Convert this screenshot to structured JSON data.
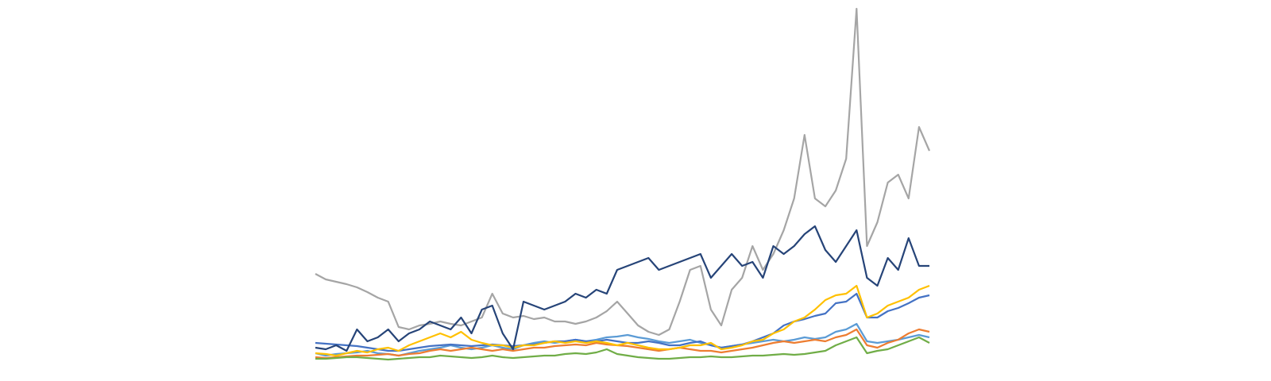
{
  "chart_data": {
    "type": "line",
    "categories": [
      null,
      null,
      null,
      null,
      null,
      null,
      null,
      null,
      null,
      null,
      null,
      null,
      null,
      null,
      null,
      null,
      null,
      null,
      null,
      null,
      null,
      null,
      null,
      null,
      null,
      null,
      null,
      null,
      null,
      null,
      null,
      null,
      null,
      null,
      null,
      null,
      null,
      null,
      null,
      null,
      null,
      null,
      null,
      null,
      null,
      null,
      null,
      null,
      null,
      null,
      null,
      null,
      null,
      null,
      null,
      null,
      null,
      null,
      null,
      null
    ],
    "ylim": [
      0,
      450
    ],
    "series": [
      {
        "color": "#a5a5a5",
        "values": [
          115,
          108,
          105,
          102,
          98,
          92,
          85,
          80,
          48,
          45,
          50,
          52,
          55,
          52,
          50,
          55,
          60,
          90,
          65,
          60,
          62,
          58,
          60,
          55,
          55,
          52,
          55,
          60,
          68,
          80,
          65,
          50,
          42,
          38,
          45,
          80,
          120,
          125,
          70,
          50,
          95,
          110,
          150,
          120,
          140,
          170,
          210,
          290,
          210,
          200,
          220,
          260,
          449,
          150,
          180,
          230,
          240,
          210,
          300,
          270
        ]
      },
      {
        "color": "#5b9bd5",
        "values": [
          15,
          12,
          14,
          15,
          16,
          18,
          15,
          14,
          12,
          15,
          18,
          20,
          22,
          25,
          22,
          20,
          22,
          25,
          22,
          20,
          25,
          28,
          30,
          28,
          30,
          32,
          30,
          32,
          35,
          36,
          38,
          35,
          33,
          30,
          28,
          30,
          32,
          28,
          25,
          22,
          24,
          26,
          28,
          30,
          32,
          30,
          32,
          35,
          33,
          35,
          42,
          45,
          52,
          30,
          28,
          30,
          32,
          35,
          38,
          35
        ]
      },
      {
        "color": "#ed7d31",
        "values": [
          10,
          9,
          10,
          11,
          12,
          12,
          13,
          14,
          12,
          14,
          15,
          18,
          20,
          18,
          20,
          22,
          20,
          18,
          20,
          18,
          20,
          22,
          22,
          24,
          25,
          26,
          25,
          28,
          26,
          25,
          24,
          22,
          20,
          18,
          20,
          22,
          20,
          18,
          18,
          16,
          18,
          20,
          22,
          25,
          28,
          30,
          28,
          30,
          32,
          30,
          35,
          38,
          45,
          25,
          22,
          28,
          32,
          40,
          45,
          42
        ]
      },
      {
        "color": "#70ad47",
        "values": [
          8,
          8,
          9,
          10,
          10,
          9,
          8,
          7,
          8,
          9,
          10,
          10,
          12,
          11,
          10,
          9,
          10,
          12,
          10,
          9,
          10,
          11,
          12,
          12,
          14,
          15,
          14,
          16,
          20,
          14,
          12,
          10,
          9,
          8,
          8,
          9,
          10,
          10,
          11,
          10,
          10,
          11,
          12,
          12,
          13,
          14,
          13,
          14,
          16,
          18,
          25,
          30,
          35,
          15,
          18,
          20,
          25,
          30,
          35,
          28
        ]
      },
      {
        "color": "#4472c4",
        "values": [
          28,
          27,
          26,
          25,
          24,
          22,
          20,
          18,
          18,
          20,
          22,
          24,
          25,
          26,
          25,
          24,
          25,
          26,
          25,
          24,
          25,
          26,
          28,
          30,
          30,
          32,
          30,
          30,
          32,
          30,
          28,
          28,
          30,
          28,
          25,
          25,
          28,
          30,
          25,
          22,
          24,
          26,
          30,
          35,
          40,
          50,
          55,
          58,
          62,
          65,
          78,
          80,
          90,
          60,
          60,
          68,
          72,
          78,
          85,
          88
        ]
      },
      {
        "color": "#ffc000",
        "values": [
          15,
          14,
          12,
          15,
          18,
          16,
          20,
          22,
          18,
          25,
          30,
          35,
          40,
          35,
          42,
          32,
          28,
          25,
          25,
          22,
          25,
          25,
          28,
          30,
          28,
          30,
          28,
          30,
          28,
          25,
          28,
          25,
          22,
          20,
          20,
          22,
          25,
          25,
          28,
          20,
          22,
          25,
          30,
          32,
          40,
          45,
          55,
          60,
          70,
          82,
          88,
          90,
          100,
          60,
          65,
          75,
          80,
          85,
          95,
          100
        ]
      },
      {
        "color": "#264478",
        "values": [
          22,
          20,
          25,
          18,
          45,
          30,
          35,
          45,
          30,
          40,
          45,
          55,
          50,
          45,
          60,
          40,
          70,
          75,
          40,
          20,
          80,
          75,
          70,
          75,
          80,
          90,
          85,
          95,
          90,
          120,
          125,
          130,
          135,
          120,
          125,
          130,
          135,
          140,
          110,
          125,
          140,
          125,
          130,
          110,
          150,
          140,
          150,
          165,
          175,
          145,
          130,
          150,
          170,
          110,
          100,
          135,
          120,
          160,
          125,
          125
        ]
      }
    ]
  }
}
